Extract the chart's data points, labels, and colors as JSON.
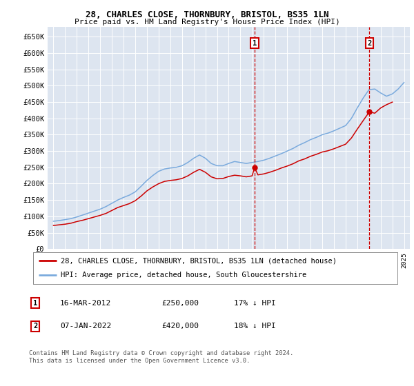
{
  "title1": "28, CHARLES CLOSE, THORNBURY, BRISTOL, BS35 1LN",
  "title2": "Price paid vs. HM Land Registry's House Price Index (HPI)",
  "plot_bg_color": "#dde5f0",
  "hpi_color": "#7aaadd",
  "price_color": "#cc0000",
  "annotation1_year": 2012.21,
  "annotation1_price": 250000,
  "annotation1_label": "1",
  "annotation2_year": 2022.03,
  "annotation2_price": 420000,
  "annotation2_label": "2",
  "legend_line1": "28, CHARLES CLOSE, THORNBURY, BRISTOL, BS35 1LN (detached house)",
  "legend_line2": "HPI: Average price, detached house, South Gloucestershire",
  "table_row1": [
    "1",
    "16-MAR-2012",
    "£250,000",
    "17% ↓ HPI"
  ],
  "table_row2": [
    "2",
    "07-JAN-2022",
    "£420,000",
    "18% ↓ HPI"
  ],
  "footnote": "Contains HM Land Registry data © Crown copyright and database right 2024.\nThis data is licensed under the Open Government Licence v3.0.",
  "ylim_min": 0,
  "ylim_max": 680000,
  "xlim_min": 1994.5,
  "xlim_max": 2025.5,
  "yticks": [
    0,
    50000,
    100000,
    150000,
    200000,
    250000,
    300000,
    350000,
    400000,
    450000,
    500000,
    550000,
    600000,
    650000
  ],
  "ytick_labels": [
    "£0",
    "£50K",
    "£100K",
    "£150K",
    "£200K",
    "£250K",
    "£300K",
    "£350K",
    "£400K",
    "£450K",
    "£500K",
    "£550K",
    "£600K",
    "£650K"
  ]
}
